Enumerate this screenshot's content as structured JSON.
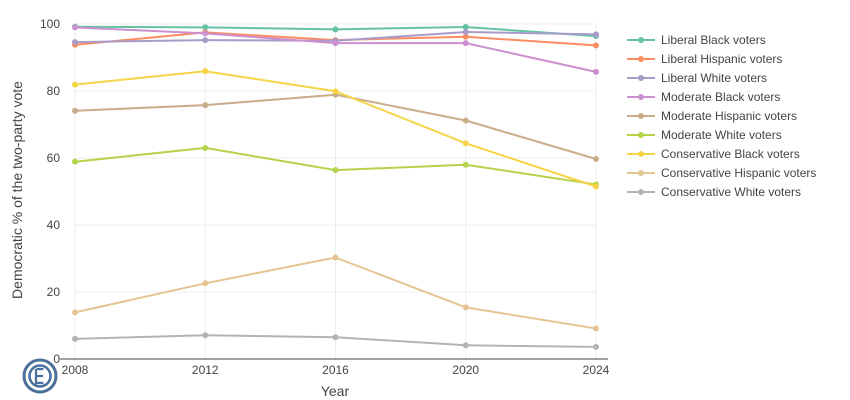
{
  "chart_data": {
    "type": "line",
    "title": "",
    "xlabel": "Year",
    "ylabel": "Democratic % of the two-party vote",
    "x": [
      2008,
      2012,
      2016,
      2020,
      2024
    ],
    "xlim": [
      2008,
      2024
    ],
    "ylim": [
      0,
      100
    ],
    "yticks": [
      0,
      20,
      40,
      60,
      80,
      100
    ],
    "grid": true,
    "legend_position": "right",
    "series": [
      {
        "name": "Liberal Black voters",
        "color": "#66c2a5",
        "values": [
          99.2,
          99.0,
          98.4,
          99.1,
          96.4
        ]
      },
      {
        "name": "Liberal Hispanic voters",
        "color": "#fc8d62",
        "values": [
          93.8,
          97.5,
          95.2,
          96.2,
          93.6
        ]
      },
      {
        "name": "Liberal White voters",
        "color": "#a99bc9",
        "values": [
          94.6,
          95.2,
          95.0,
          97.6,
          96.9
        ]
      },
      {
        "name": "Moderate Black voters",
        "color": "#cc8fcf",
        "values": [
          99.0,
          97.2,
          94.3,
          94.3,
          85.7
        ]
      },
      {
        "name": "Moderate Hispanic voters",
        "color": "#c9ad8a",
        "values": [
          74.1,
          75.8,
          78.9,
          71.2,
          59.7
        ]
      },
      {
        "name": "Moderate White voters",
        "color": "#b5d34a",
        "values": [
          58.9,
          63.0,
          56.4,
          58.0,
          52.1
        ]
      },
      {
        "name": "Conservative Black voters",
        "color": "#f5d547",
        "values": [
          81.9,
          85.9,
          79.9,
          64.4,
          51.5
        ]
      },
      {
        "name": "Conservative Hispanic voters",
        "color": "#e5c494",
        "values": [
          13.9,
          22.6,
          30.3,
          15.4,
          9.1
        ]
      },
      {
        "name": "Conservative White voters",
        "color": "#b3b3b3",
        "values": [
          6.0,
          7.1,
          6.5,
          4.1,
          3.6
        ]
      }
    ]
  },
  "logo": {
    "name": "cces-logo-icon",
    "color": "#4a6f9a"
  }
}
